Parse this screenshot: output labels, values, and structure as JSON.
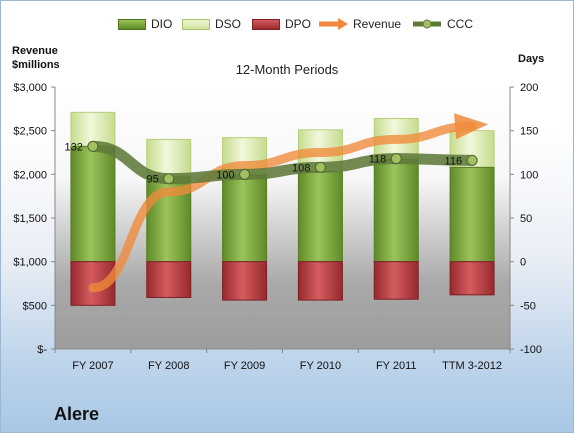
{
  "chart_data": {
    "type": "bar",
    "title": "12-Month Periods",
    "company": "Alere",
    "categories": [
      "FY 2007",
      "FY 2008",
      "FY 2009",
      "FY 2010",
      "FY 2011",
      "TTM 3-2012"
    ],
    "left_axis": {
      "label_line1": "Revenue",
      "label_line2": "$millions",
      "ylim": [
        0,
        3000
      ],
      "ticks": [
        0,
        500,
        1000,
        1500,
        2000,
        2500,
        3000
      ],
      "tick_labels": [
        "$-",
        "$500",
        "$1,000",
        "$1,500",
        "$2,000",
        "$2,500",
        "$3,000"
      ]
    },
    "right_axis": {
      "label": "Days",
      "ylim": [
        -100,
        200
      ],
      "ticks": [
        -100,
        -50,
        0,
        50,
        100,
        150,
        200
      ],
      "tick_labels": [
        "-100",
        "-50",
        "0",
        "50",
        "100",
        "150",
        "200"
      ]
    },
    "series": [
      {
        "name": "DIO",
        "axis": "right",
        "kind": "stacked-bar",
        "color": "#77a23a",
        "values": [
          132,
          97,
          99,
          103,
          117,
          108
        ]
      },
      {
        "name": "DSO",
        "axis": "right",
        "kind": "stacked-bar",
        "color": "#d5e7a6",
        "values": [
          39,
          43,
          43,
          48,
          47,
          42
        ]
      },
      {
        "name": "DPO",
        "axis": "right",
        "kind": "bar-below-zero",
        "color": "#b53b3f",
        "values": [
          -50,
          -41,
          -44,
          -44,
          -43,
          -38
        ]
      },
      {
        "name": "Revenue",
        "axis": "left",
        "kind": "arrow",
        "color": "#f08a3a",
        "values": [
          -30,
          80,
          110,
          125,
          140,
          155
        ],
        "note": "trend arrow"
      },
      {
        "name": "CCC",
        "axis": "right",
        "kind": "line",
        "color": "#5e7a3a",
        "values": [
          132,
          95,
          100,
          108,
          118,
          116
        ],
        "data_labels": [
          "132",
          "95",
          "100",
          "108",
          "118",
          "116"
        ]
      }
    ],
    "legend": [
      "DIO",
      "DSO",
      "DPO",
      "Revenue",
      "CCC"
    ],
    "legend_position": "top",
    "grid": false
  }
}
